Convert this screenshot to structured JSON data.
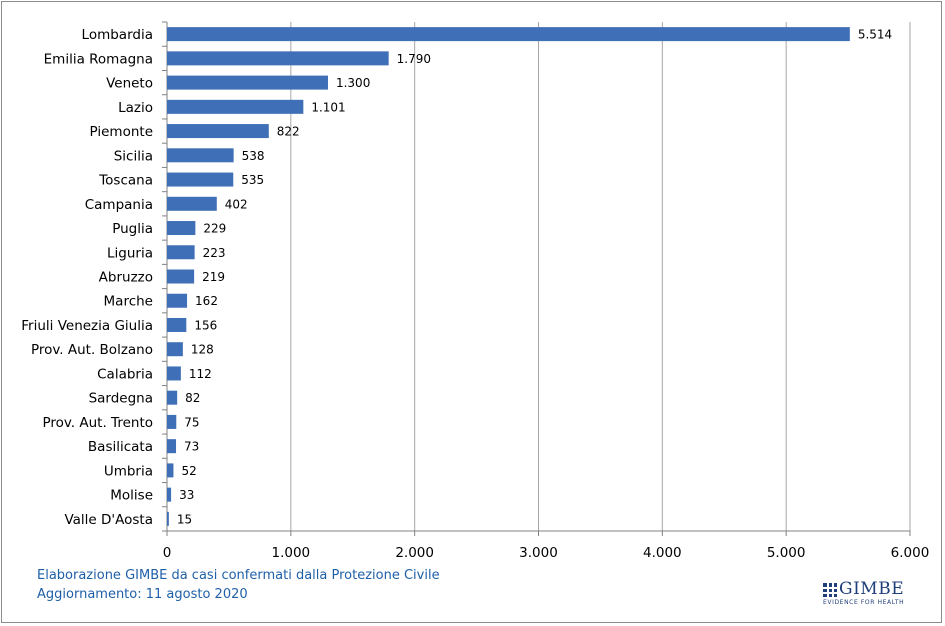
{
  "chart_data": {
    "type": "bar",
    "orientation": "horizontal",
    "categories": [
      "Lombardia",
      "Emilia Romagna",
      "Veneto",
      "Lazio",
      "Piemonte",
      "Sicilia",
      "Toscana",
      "Campania",
      "Puglia",
      "Liguria",
      "Abruzzo",
      "Marche",
      "Friuli Venezia Giulia",
      "Prov. Aut. Bolzano",
      "Calabria",
      "Sardegna",
      "Prov. Aut. Trento",
      "Basilicata",
      "Umbria",
      "Molise",
      "Valle D'Aosta"
    ],
    "values": [
      5514,
      1790,
      1300,
      1101,
      822,
      538,
      535,
      402,
      229,
      223,
      219,
      162,
      156,
      128,
      112,
      82,
      75,
      73,
      52,
      33,
      15
    ],
    "value_labels": [
      "5.514",
      "1.790",
      "1.300",
      "1.101",
      "822",
      "538",
      "535",
      "402",
      "229",
      "223",
      "219",
      "162",
      "156",
      "128",
      "112",
      "82",
      "75",
      "73",
      "52",
      "33",
      "15"
    ],
    "x_ticks": [
      0,
      1000,
      2000,
      3000,
      4000,
      5000,
      6000
    ],
    "x_tick_labels": [
      "0",
      "1.000",
      "2.000",
      "3.000",
      "4.000",
      "5.000",
      "6.000"
    ],
    "xlim": [
      0,
      6000
    ],
    "bar_color": "#3f6fb6",
    "grid": "vertical"
  },
  "footer": {
    "credit": "Elaborazione GIMBE da casi confermati dalla Protezione Civile",
    "update": "Aggiornamento: 11 agosto 2020"
  },
  "logo": {
    "name": "GIMBE",
    "tagline": "EVIDENCE FOR HEALTH"
  }
}
